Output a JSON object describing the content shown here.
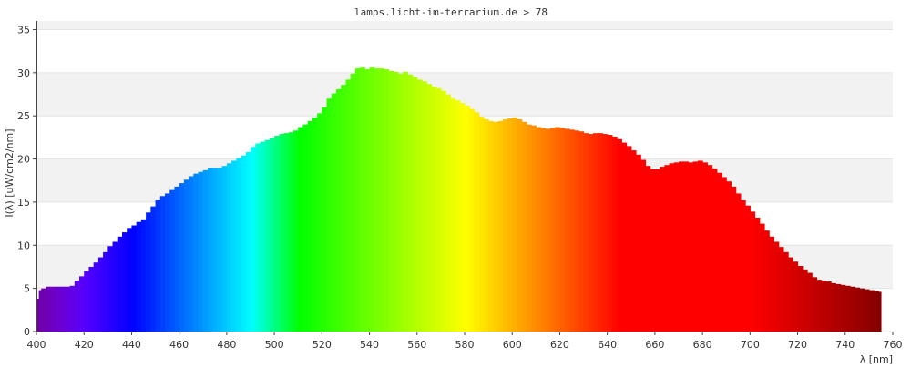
{
  "chart_data": {
    "type": "area",
    "title": "lamps.licht-im-terrarium.de > 78",
    "xlabel": "λ [nm]",
    "ylabel": "I(λ)  [uW/cm2/nm]",
    "xlim": [
      400,
      760
    ],
    "ylim": [
      0,
      36
    ],
    "x_ticks": [
      400,
      420,
      440,
      460,
      480,
      500,
      520,
      540,
      560,
      580,
      600,
      620,
      640,
      660,
      680,
      700,
      720,
      740,
      760
    ],
    "y_ticks": [
      0,
      5,
      10,
      15,
      20,
      25,
      30,
      35
    ],
    "grid": "horizontal bands",
    "legend": "none",
    "series": [
      {
        "x": [
          400,
          401,
          402,
          404,
          406,
          408,
          410,
          412,
          414,
          416,
          418,
          420,
          422,
          424,
          426,
          428,
          430,
          432,
          434,
          436,
          438,
          440,
          442,
          444,
          446,
          448,
          450,
          452,
          454,
          456,
          458,
          460,
          462,
          464,
          466,
          468,
          470,
          472,
          474,
          476,
          478,
          480,
          482,
          484,
          486,
          488,
          490,
          492,
          494,
          496,
          498,
          500,
          502,
          504,
          506,
          508,
          510,
          512,
          514,
          516,
          518,
          520,
          522,
          524,
          526,
          528,
          530,
          532,
          534,
          536,
          538,
          540,
          542,
          544,
          546,
          548,
          550,
          552,
          554,
          556,
          558,
          560,
          562,
          564,
          566,
          568,
          570,
          572,
          574,
          576,
          578,
          580,
          582,
          584,
          586,
          588,
          590,
          592,
          594,
          596,
          598,
          600,
          602,
          604,
          606,
          608,
          610,
          612,
          614,
          616,
          618,
          620,
          622,
          624,
          626,
          628,
          630,
          632,
          634,
          636,
          638,
          640,
          642,
          644,
          646,
          648,
          650,
          652,
          654,
          656,
          658,
          660,
          662,
          664,
          666,
          668,
          670,
          672,
          674,
          676,
          678,
          680,
          682,
          684,
          686,
          688,
          690,
          692,
          694,
          696,
          698,
          700,
          702,
          704,
          706,
          708,
          710,
          712,
          714,
          716,
          718,
          720,
          722,
          724,
          726,
          728,
          730,
          732,
          734,
          736,
          738,
          740,
          742,
          744,
          746,
          748,
          750,
          752,
          754
        ],
        "values": [
          3.8,
          4.8,
          5.0,
          5.2,
          5.2,
          5.2,
          5.2,
          5.2,
          5.3,
          5.9,
          6.4,
          7.0,
          7.5,
          8.0,
          8.6,
          9.2,
          9.9,
          10.4,
          11.0,
          11.5,
          12.0,
          12.3,
          12.7,
          13.0,
          13.8,
          14.5,
          15.2,
          15.7,
          16.0,
          16.4,
          16.8,
          17.2,
          17.6,
          18.0,
          18.3,
          18.5,
          18.7,
          19.0,
          19.0,
          19.0,
          19.2,
          19.5,
          19.8,
          20.1,
          20.4,
          20.8,
          21.4,
          21.8,
          22.0,
          22.2,
          22.4,
          22.7,
          22.9,
          23.0,
          23.1,
          23.3,
          23.7,
          24.0,
          24.4,
          24.8,
          25.3,
          26.0,
          27.0,
          27.6,
          28.1,
          28.6,
          29.2,
          29.9,
          30.5,
          30.6,
          30.4,
          30.6,
          30.5,
          30.5,
          30.4,
          30.2,
          30.1,
          29.9,
          30.1,
          29.8,
          29.5,
          29.2,
          29.0,
          28.7,
          28.4,
          28.2,
          27.9,
          27.5,
          27.0,
          26.8,
          26.5,
          26.2,
          25.8,
          25.4,
          24.9,
          24.6,
          24.4,
          24.3,
          24.4,
          24.6,
          24.7,
          24.8,
          24.6,
          24.3,
          24.0,
          23.9,
          23.7,
          23.6,
          23.5,
          23.6,
          23.7,
          23.6,
          23.5,
          23.4,
          23.3,
          23.2,
          23.0,
          22.9,
          23.0,
          23.0,
          22.9,
          22.8,
          22.6,
          22.3,
          21.9,
          21.5,
          21.0,
          20.5,
          19.9,
          19.2,
          18.8,
          18.8,
          19.1,
          19.3,
          19.5,
          19.6,
          19.7,
          19.7,
          19.6,
          19.7,
          19.8,
          19.6,
          19.3,
          18.9,
          18.4,
          17.9,
          17.4,
          16.8,
          16.0,
          15.2,
          14.6,
          13.9,
          13.2,
          12.5,
          11.7,
          11.0,
          10.4,
          9.8,
          9.2,
          8.6,
          8.1,
          7.6,
          7.2,
          6.8,
          6.3,
          6.0,
          5.9,
          5.8,
          5.6,
          5.5,
          5.4,
          5.3,
          5.2,
          5.1,
          5.0,
          4.9,
          4.8,
          4.7,
          4.6
        ]
      }
    ]
  }
}
